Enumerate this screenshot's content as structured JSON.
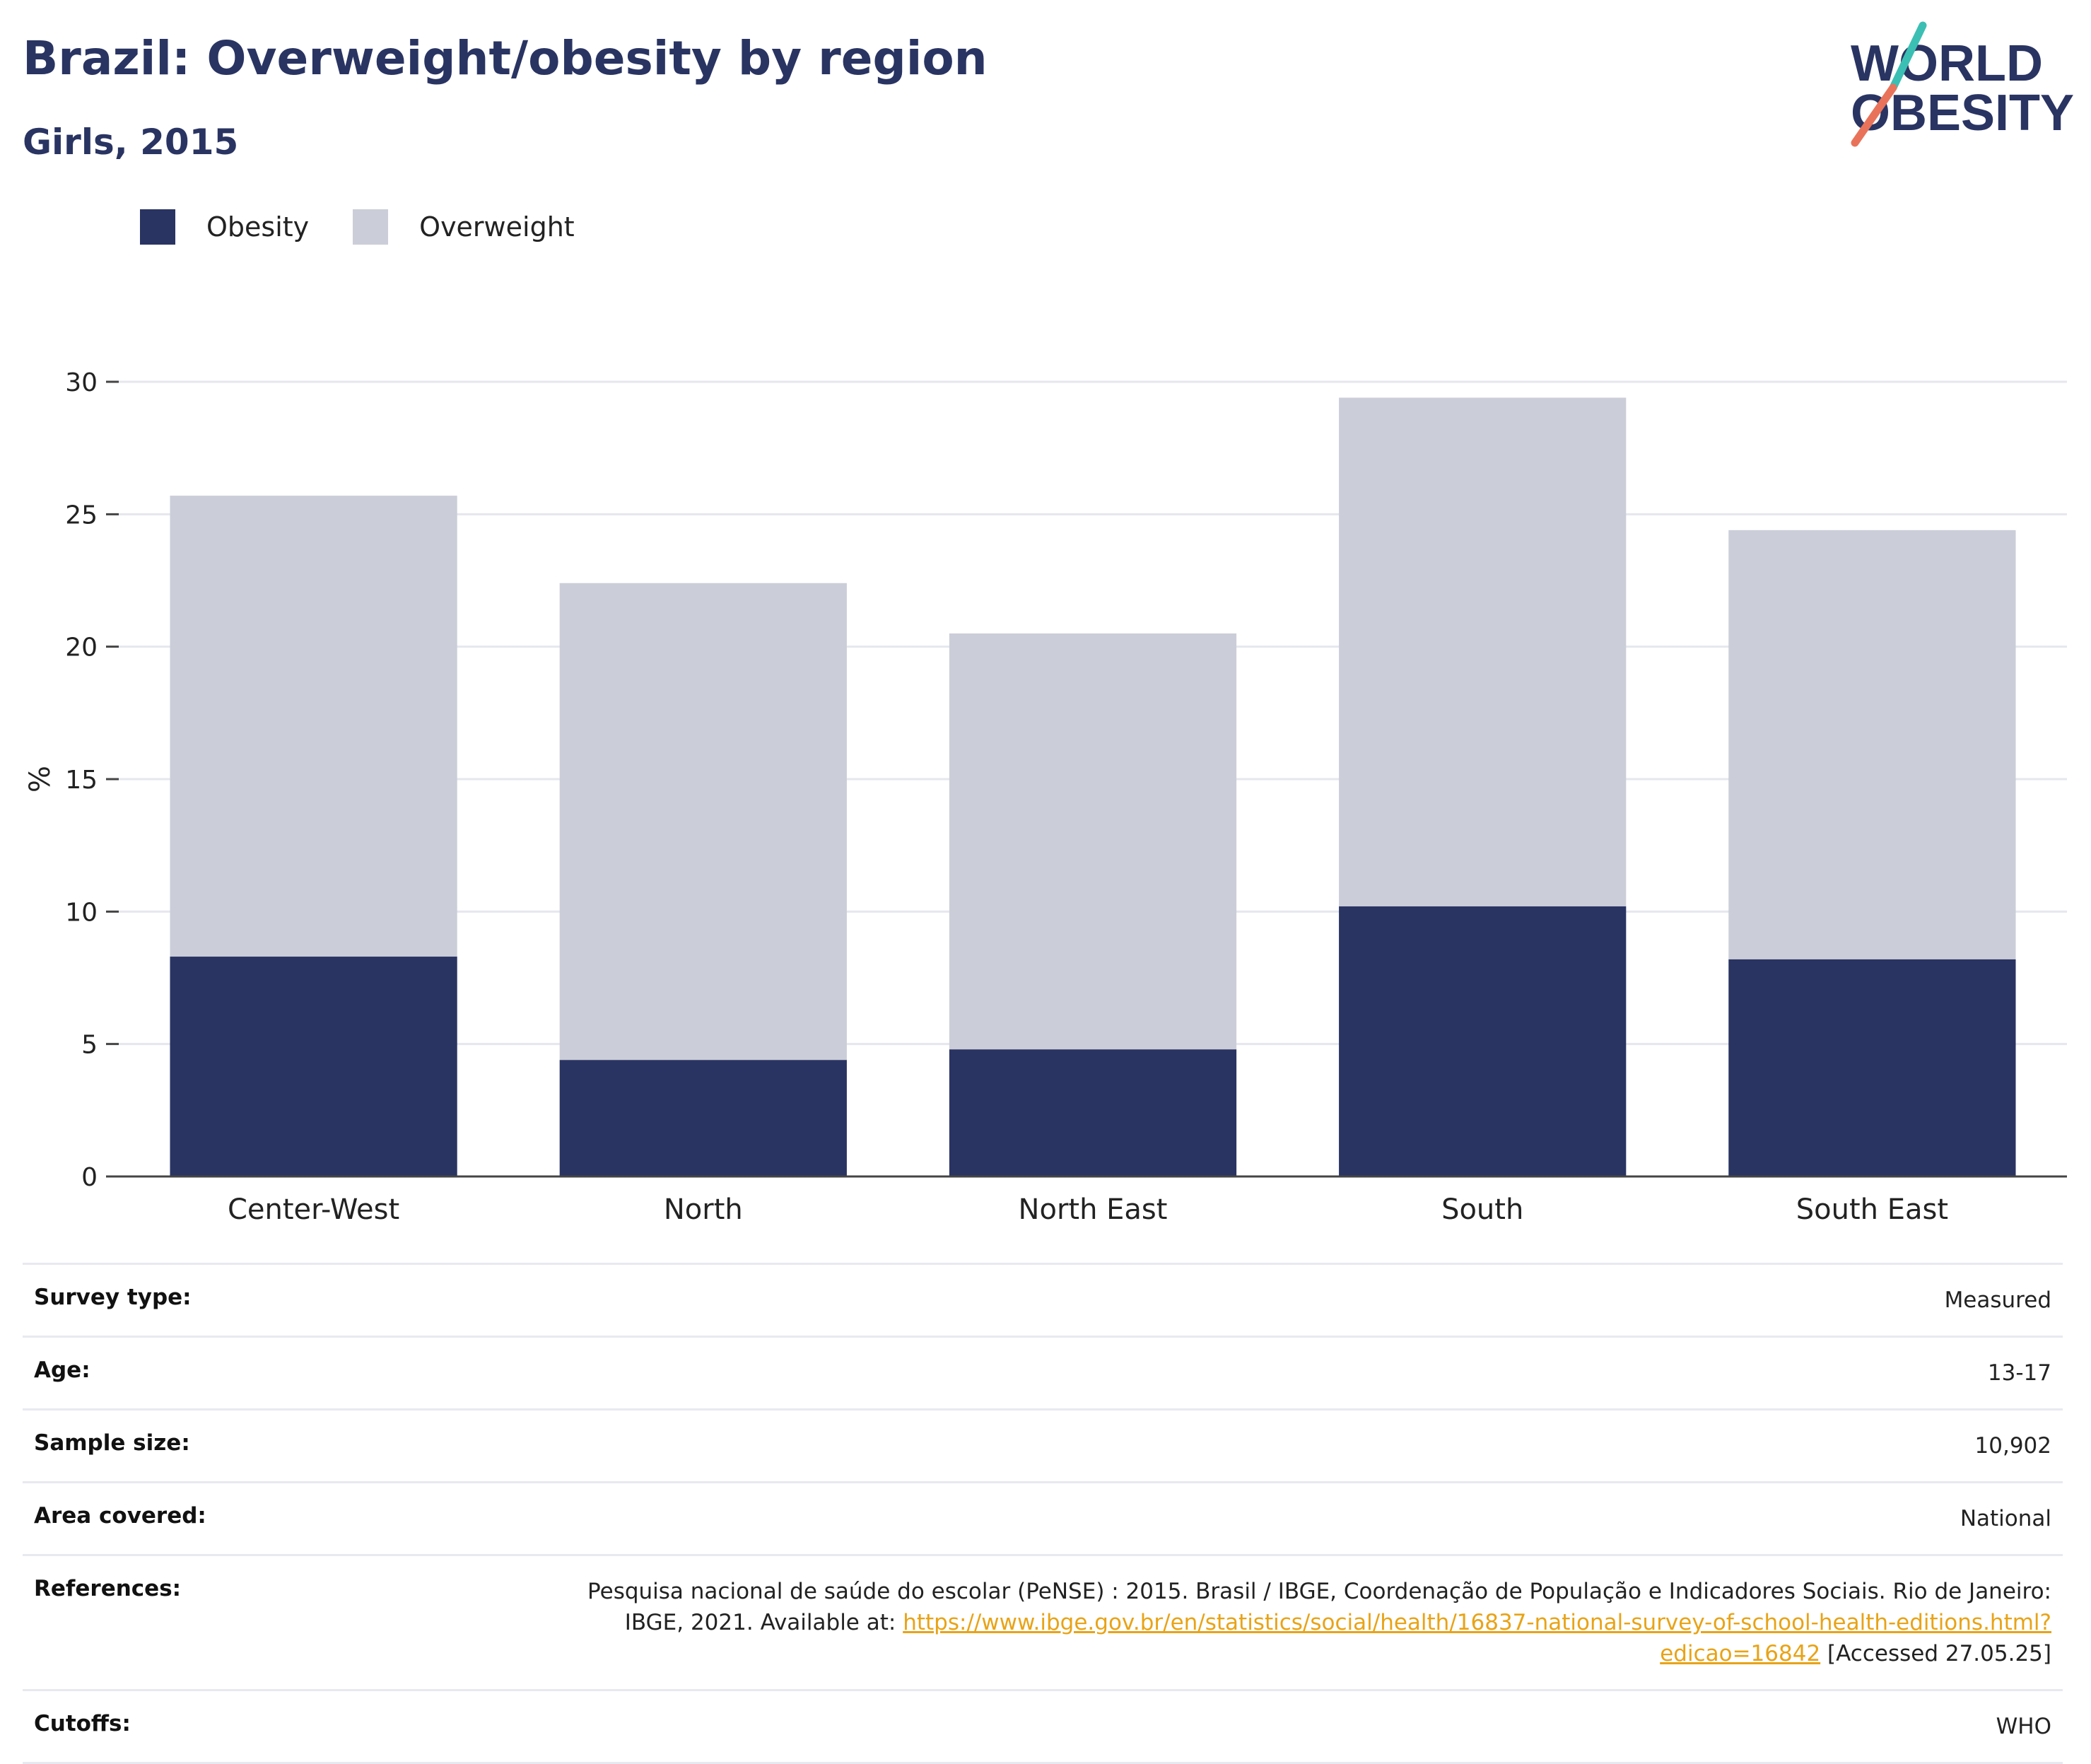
{
  "header": {
    "title": "Brazil: Overweight/obesity by region",
    "subtitle": "Girls, 2015"
  },
  "logo": {
    "line1": "WORLD",
    "line2": "OBESITY",
    "colors": {
      "text": "#293462",
      "slash_top": "#3bbfb4",
      "slash_bottom": "#e8735a"
    }
  },
  "legend": [
    {
      "label": "Obesity",
      "color": "#293462"
    },
    {
      "label": "Overweight",
      "color": "#cbcdd8"
    }
  ],
  "chart_data": {
    "type": "bar",
    "stacked": true,
    "categories": [
      "Center-West",
      "North",
      "North East",
      "South",
      "South East"
    ],
    "series": [
      {
        "name": "Obesity",
        "color": "#293462",
        "values": [
          8.3,
          4.4,
          4.8,
          10.2,
          8.2
        ]
      },
      {
        "name": "Overweight",
        "color": "#cbcdd8",
        "values": [
          17.4,
          18.0,
          15.7,
          19.2,
          16.2
        ]
      }
    ],
    "totals": [
      25.7,
      22.4,
      20.5,
      29.4,
      24.4
    ],
    "ylabel": "%",
    "xlabel": "",
    "ylim": [
      0,
      30
    ],
    "yticks": [
      0,
      5,
      10,
      15,
      20,
      25,
      30
    ],
    "grid": true,
    "legend_position": "top-left"
  },
  "meta": {
    "survey_type": {
      "label": "Survey type:",
      "value": "Measured"
    },
    "age": {
      "label": "Age:",
      "value": "13-17"
    },
    "sample_size": {
      "label": "Sample size:",
      "value": "10,902"
    },
    "area_covered": {
      "label": "Area covered:",
      "value": "National"
    },
    "references": {
      "label": "References:",
      "text_before": "Pesquisa nacional de saúde do escolar (PeNSE) : 2015. Brasil / IBGE, Coordenação de População e Indicadores Sociais. Rio de Janeiro: IBGE, 2021. Available at: ",
      "link": "https://www.ibge.gov.br/en/statistics/social/health/16837-national-survey-of-school-health-editions.html?edicao=16842",
      "text_after": " [Accessed 27.05.25]"
    },
    "cutoffs": {
      "label": "Cutoffs:",
      "value": "WHO"
    }
  }
}
